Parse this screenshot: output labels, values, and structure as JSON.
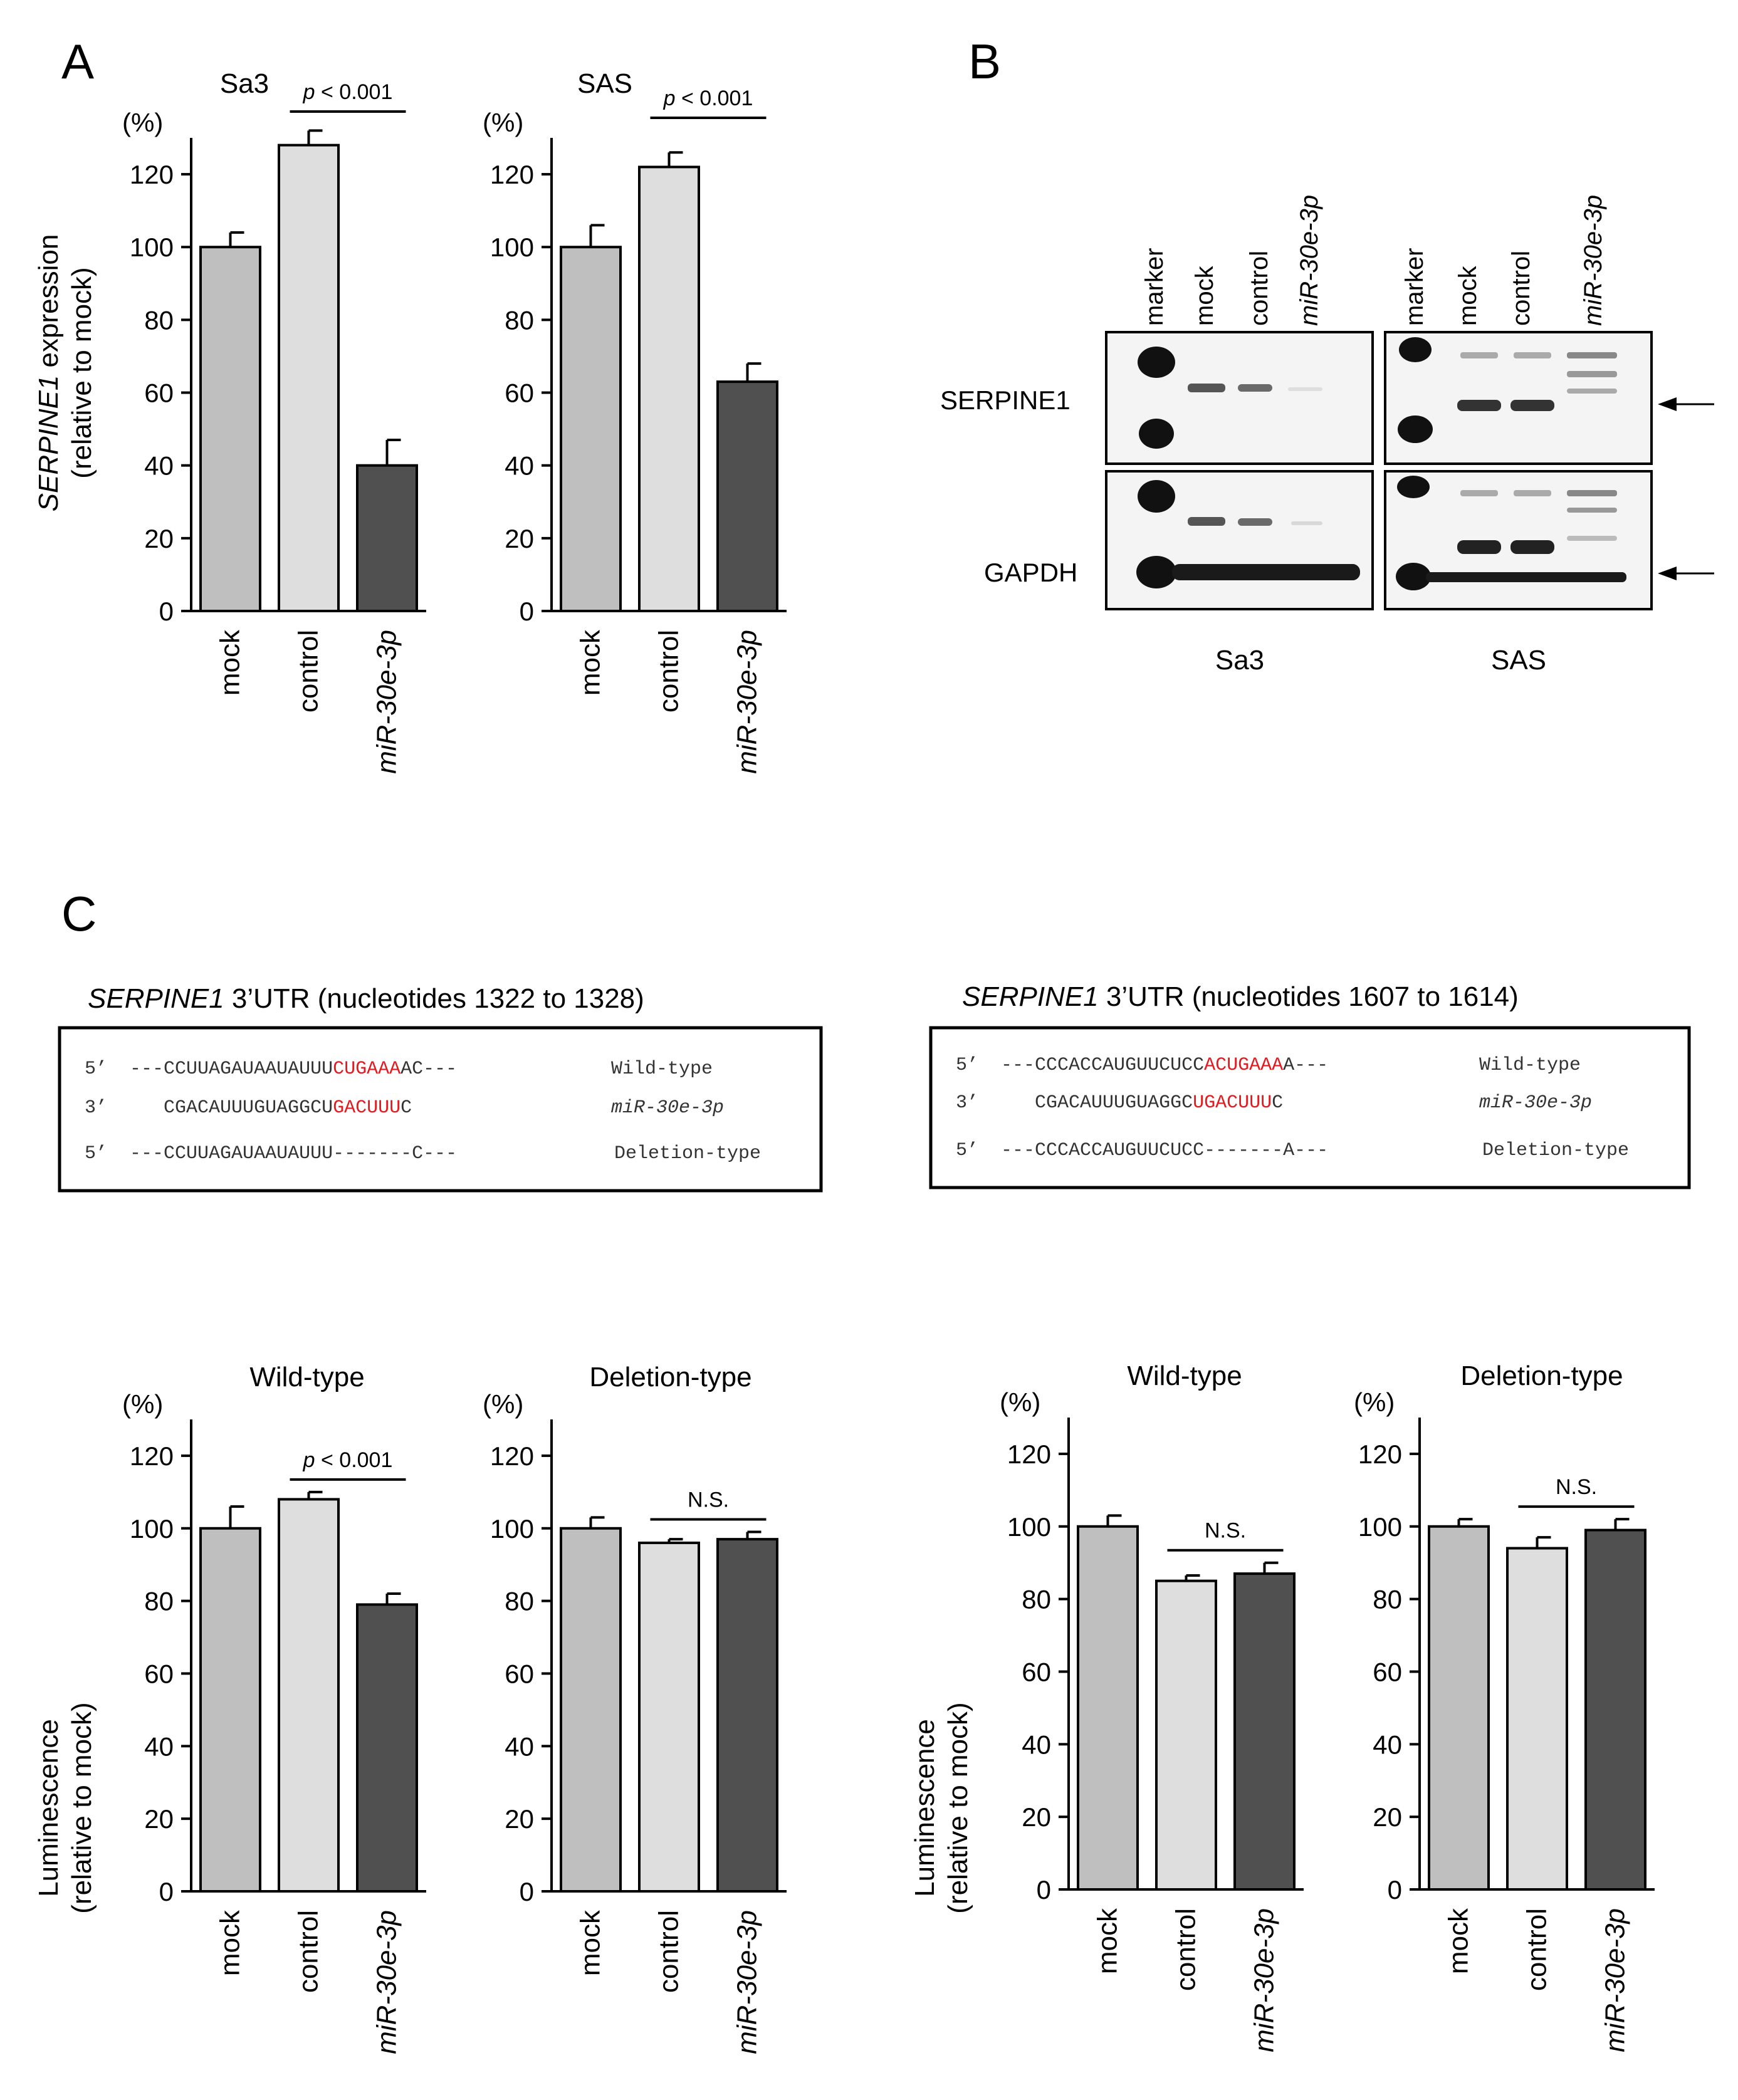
{
  "panel_labels": {
    "a": "A",
    "b": "B",
    "c": "C"
  },
  "pct_unit": "(%)",
  "ylabel_A": {
    "gene": "SERPINE1",
    "rest": " expression",
    "line2": "(relative to mock)"
  },
  "ylabel_C": {
    "line1": "Luminescence",
    "line2": "(relative to mock)"
  },
  "colors": {
    "mock": "#bfbfbf",
    "control": "#dedede",
    "mir": "#505050"
  },
  "chart_data": [
    {
      "type": "bar",
      "panel": "A",
      "title": "Sa3",
      "categories": [
        "mock",
        "control",
        "miR-30e-3p"
      ],
      "values": [
        100,
        128,
        40
      ],
      "errors": [
        4,
        4,
        7
      ],
      "ylim": [
        0,
        130
      ],
      "yticks": [
        0,
        20,
        40,
        60,
        80,
        100,
        120
      ],
      "ylabel": "SERPINE1 expression (relative to mock)",
      "annotation": {
        "prefix": "p",
        "text": " < 0.001",
        "between": [
          1,
          2
        ]
      }
    },
    {
      "type": "bar",
      "panel": "A",
      "title": "SAS",
      "categories": [
        "mock",
        "control",
        "miR-30e-3p"
      ],
      "values": [
        100,
        122,
        63
      ],
      "errors": [
        6,
        4,
        5
      ],
      "ylim": [
        0,
        130
      ],
      "yticks": [
        0,
        20,
        40,
        60,
        80,
        100,
        120
      ],
      "ylabel": "SERPINE1 expression (relative to mock)",
      "annotation": {
        "prefix": "p",
        "text": " < 0.001",
        "between": [
          1,
          2
        ]
      }
    },
    {
      "type": "bar",
      "panel": "C",
      "title": "Wild-type",
      "categories": [
        "mock",
        "control",
        "miR-30e-3p"
      ],
      "values": [
        100,
        108,
        79
      ],
      "errors": [
        6,
        2,
        3
      ],
      "ylim": [
        0,
        130
      ],
      "yticks": [
        0,
        20,
        40,
        60,
        80,
        100,
        120
      ],
      "ylabel": "Luminescence (relative to mock)",
      "annotation": {
        "prefix": "p",
        "text": " < 0.001",
        "between": [
          1,
          2
        ]
      }
    },
    {
      "type": "bar",
      "panel": "C",
      "title": "Deletion-type",
      "categories": [
        "mock",
        "control",
        "miR-30e-3p"
      ],
      "values": [
        100,
        96,
        97
      ],
      "errors": [
        3,
        1,
        2
      ],
      "ylim": [
        0,
        130
      ],
      "yticks": [
        0,
        20,
        40,
        60,
        80,
        100,
        120
      ],
      "ylabel": "",
      "annotation": {
        "prefix": "",
        "text": "N.S.",
        "between": [
          1,
          2
        ]
      }
    },
    {
      "type": "bar",
      "panel": "C",
      "title": "Wild-type",
      "categories": [
        "mock",
        "control",
        "miR-30e-3p"
      ],
      "values": [
        100,
        85,
        87
      ],
      "errors": [
        3,
        1.5,
        3
      ],
      "ylim": [
        0,
        130
      ],
      "yticks": [
        0,
        20,
        40,
        60,
        80,
        100,
        120
      ],
      "ylabel": "Luminescence (relative to mock)",
      "annotation": {
        "prefix": "",
        "text": "N.S.",
        "between": [
          1,
          2
        ]
      }
    },
    {
      "type": "bar",
      "panel": "C",
      "title": "Deletion-type",
      "categories": [
        "mock",
        "control",
        "miR-30e-3p"
      ],
      "values": [
        100,
        94,
        99
      ],
      "errors": [
        2,
        3,
        3
      ],
      "ylim": [
        0,
        130
      ],
      "yticks": [
        0,
        20,
        40,
        60,
        80,
        100,
        120
      ],
      "ylabel": "",
      "annotation": {
        "prefix": "",
        "text": "N.S.",
        "between": [
          1,
          2
        ]
      }
    }
  ],
  "blot": {
    "lanes": [
      "marker",
      "mock",
      "control",
      "miR-30e-3p"
    ],
    "rows": [
      "SERPINE1",
      "GAPDH"
    ],
    "cell_lines": [
      "Sa3",
      "SAS"
    ]
  },
  "utr": [
    {
      "gene": "SERPINE1",
      "title_rest": "  3’UTR (nucleotides 1322 to 1328)",
      "rows": [
        {
          "prime": "5’",
          "pre": "---CCUUAGAUAAUAUUU",
          "hl": "CUGAAA",
          "post": "AC---",
          "label": "Wild-type"
        },
        {
          "prime": "3’",
          "pre": "   CGACAUUUGUAGGCU",
          "hl": "GACUUU",
          "post": "C",
          "label": "miR-30e-3p"
        },
        {
          "prime": "5’",
          "pre": "---CCUUAGAUAAUAUUU-------C---",
          "hl": "",
          "post": "",
          "label": "Deletion-type"
        }
      ]
    },
    {
      "gene": "SERPINE1",
      "title_rest": "  3’UTR (nucleotides 1607 to 1614)",
      "rows": [
        {
          "prime": "5’",
          "pre": "---CCCACCAUGUUCUCC",
          "hl": "ACUGAAA",
          "post": "A---",
          "label": "Wild-type"
        },
        {
          "prime": "3’",
          "pre": "   CGACAUUUGUAGGC",
          "hl": "UGACUUU",
          "post": "C",
          "label": "miR-30e-3p"
        },
        {
          "prime": "5’",
          "pre": "---CCCACCAUGUUCUCC-------A---",
          "hl": "",
          "post": "",
          "label": "Deletion-type"
        }
      ]
    }
  ]
}
